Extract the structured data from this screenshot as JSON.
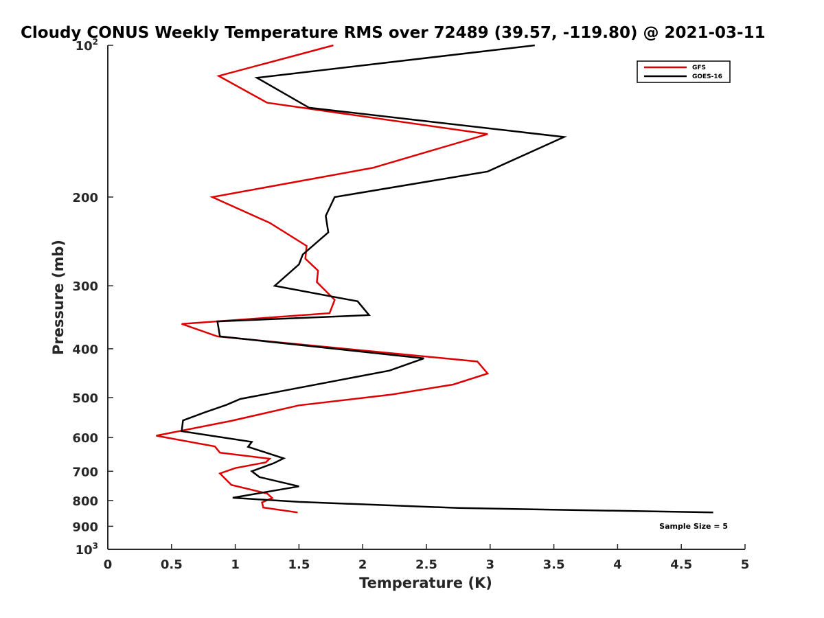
{
  "chart_data": {
    "type": "line",
    "title": "Cloudy CONUS Weekly Temperature RMS over 72489 (39.57, -119.80) @ 2021-03-11",
    "xlabel": "Temperature (K)",
    "ylabel": "Pressure (mb)",
    "xlim": [
      0,
      5
    ],
    "ylim": [
      100,
      1000
    ],
    "y_scale": "log",
    "y_reversed": true,
    "x_ticks": [
      "0",
      "0.5",
      "1",
      "1.5",
      "2",
      "2.5",
      "3",
      "3.5",
      "4",
      "4.5",
      "5"
    ],
    "y_ticks": [
      {
        "value": 100,
        "base": "10",
        "exp": "2"
      },
      {
        "value": 200,
        "label": "200"
      },
      {
        "value": 300,
        "label": "300"
      },
      {
        "value": 400,
        "label": "400"
      },
      {
        "value": 500,
        "label": "500"
      },
      {
        "value": 600,
        "label": "600"
      },
      {
        "value": 700,
        "label": "700"
      },
      {
        "value": 800,
        "label": "800"
      },
      {
        "value": 900,
        "label": "900"
      },
      {
        "value": 1000,
        "base": "10",
        "exp": "3"
      }
    ],
    "legend_position": "top-right",
    "grid": false,
    "annotation": "Sample Size = 5",
    "series": [
      {
        "name": "GFS",
        "color": "#dd0000",
        "points": [
          [
            1.77,
            100
          ],
          [
            0.87,
            115
          ],
          [
            1.25,
            130
          ],
          [
            2.98,
            150
          ],
          [
            2.08,
            175
          ],
          [
            0.82,
            200
          ],
          [
            1.27,
            225
          ],
          [
            1.56,
            250
          ],
          [
            1.55,
            265
          ],
          [
            1.65,
            280
          ],
          [
            1.64,
            295
          ],
          [
            1.78,
            320
          ],
          [
            1.74,
            340
          ],
          [
            0.58,
            357
          ],
          [
            0.86,
            378
          ],
          [
            2.9,
            424
          ],
          [
            2.98,
            448
          ],
          [
            2.71,
            471
          ],
          [
            2.23,
            493
          ],
          [
            1.5,
            518
          ],
          [
            0.97,
            556
          ],
          [
            0.38,
            595
          ],
          [
            0.84,
            625
          ],
          [
            0.88,
            643
          ],
          [
            1.27,
            661
          ],
          [
            1.24,
            672
          ],
          [
            1.0,
            690
          ],
          [
            0.88,
            707
          ],
          [
            0.97,
            745
          ],
          [
            1.25,
            775
          ],
          [
            1.29,
            791
          ],
          [
            1.21,
            807
          ],
          [
            1.22,
            826
          ],
          [
            1.49,
            845
          ]
        ]
      },
      {
        "name": "GOES-16",
        "color": "#000000",
        "points": [
          [
            3.35,
            100
          ],
          [
            1.17,
            116
          ],
          [
            1.58,
            133
          ],
          [
            3.58,
            152
          ],
          [
            2.98,
            178
          ],
          [
            1.78,
            200
          ],
          [
            1.71,
            218
          ],
          [
            1.73,
            235
          ],
          [
            1.53,
            260
          ],
          [
            1.5,
            272
          ],
          [
            1.31,
            300
          ],
          [
            1.96,
            322
          ],
          [
            2.05,
            343
          ],
          [
            0.86,
            353
          ],
          [
            0.88,
            378
          ],
          [
            2.48,
            418
          ],
          [
            2.21,
            442
          ],
          [
            1.04,
            503
          ],
          [
            0.93,
            517
          ],
          [
            0.76,
            535
          ],
          [
            0.59,
            555
          ],
          [
            0.58,
            583
          ],
          [
            1.13,
            612
          ],
          [
            1.1,
            626
          ],
          [
            1.38,
            660
          ],
          [
            1.3,
            675
          ],
          [
            1.13,
            700
          ],
          [
            1.19,
            719
          ],
          [
            1.5,
            750
          ],
          [
            0.98,
            790
          ],
          [
            1.5,
            805
          ],
          [
            2.75,
            828
          ],
          [
            4.75,
            845
          ]
        ]
      }
    ]
  }
}
